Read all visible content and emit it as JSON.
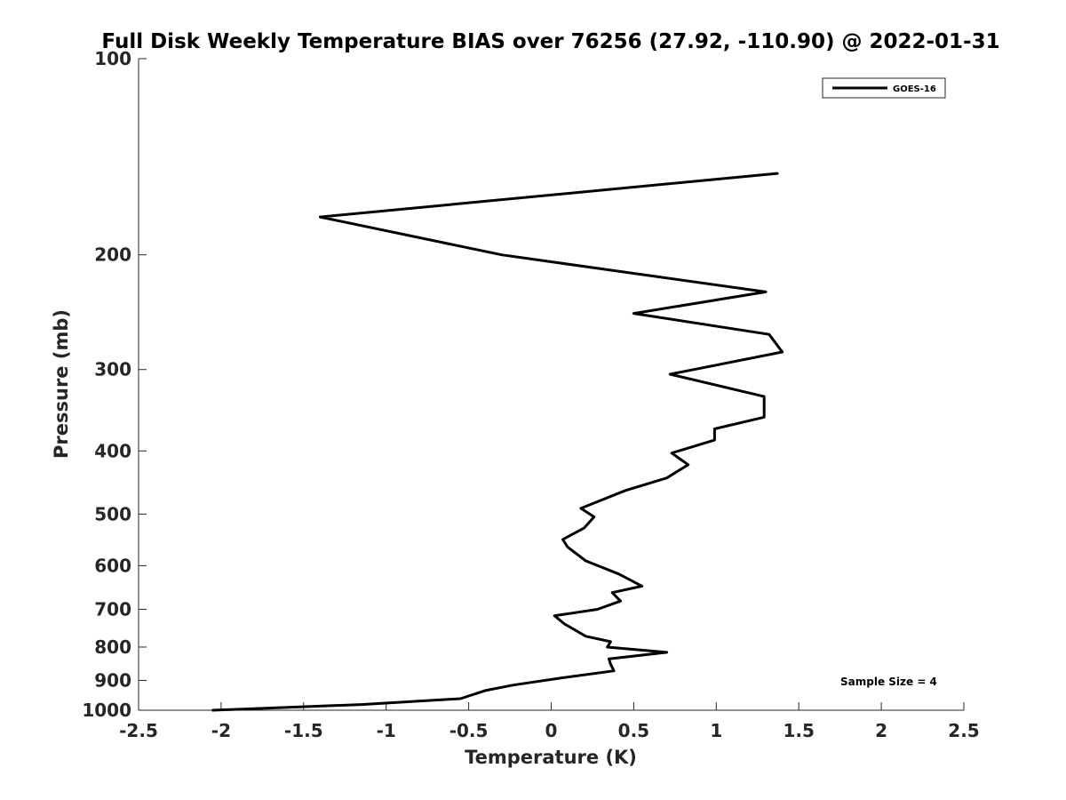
{
  "chart_data": {
    "type": "line",
    "title": "Full Disk Weekly Temperature BIAS over 76256 (27.92, -110.90) @ 2022-01-31",
    "xlabel": "Temperature (K)",
    "ylabel": "Pressure (mb)",
    "xlim": [
      -2.5,
      2.5
    ],
    "ylim": [
      1000,
      100
    ],
    "y_scale": "log",
    "y_reversed": true,
    "x_ticks": [
      "-2.5",
      "-2",
      "-1.5",
      "-1",
      "-0.5",
      "0",
      "0.5",
      "1",
      "1.5",
      "2",
      "2.5"
    ],
    "x_tick_values": [
      -2.5,
      -2,
      -1.5,
      -1,
      -0.5,
      0,
      0.5,
      1,
      1.5,
      2,
      2.5
    ],
    "y_ticks": [
      "100",
      "200",
      "300",
      "400",
      "500",
      "600",
      "700",
      "800",
      "900",
      "1000"
    ],
    "y_tick_values": [
      100,
      200,
      300,
      400,
      500,
      600,
      700,
      800,
      900,
      1000
    ],
    "grid": false,
    "legend": {
      "position": "top-right",
      "entries": [
        "GOES-16"
      ]
    },
    "annotation": "Sample Size = 4",
    "series": [
      {
        "name": "GOES-16",
        "color": "#000000",
        "x": [
          1.37,
          -1.4,
          -0.3,
          1.3,
          0.5,
          1.32,
          1.4,
          0.72,
          1.29,
          1.29,
          0.99,
          0.99,
          0.73,
          0.83,
          0.7,
          0.45,
          0.18,
          0.26,
          0.2,
          0.07,
          0.1,
          0.21,
          0.41,
          0.55,
          0.37,
          0.42,
          0.28,
          0.02,
          0.08,
          0.21,
          0.36,
          0.34,
          0.7,
          0.35,
          0.36,
          0.38,
          0.05,
          -0.23,
          -0.4,
          -0.55,
          -1.15,
          -2.05
        ],
        "y": [
          150,
          175,
          200,
          228,
          246,
          265,
          282,
          305,
          330,
          355,
          370,
          385,
          403,
          420,
          440,
          460,
          490,
          505,
          525,
          547,
          562,
          590,
          618,
          645,
          660,
          680,
          700,
          716,
          737,
          770,
          785,
          800,
          815,
          834,
          850,
          870,
          893,
          915,
          933,
          960,
          980,
          1000
        ]
      }
    ]
  }
}
